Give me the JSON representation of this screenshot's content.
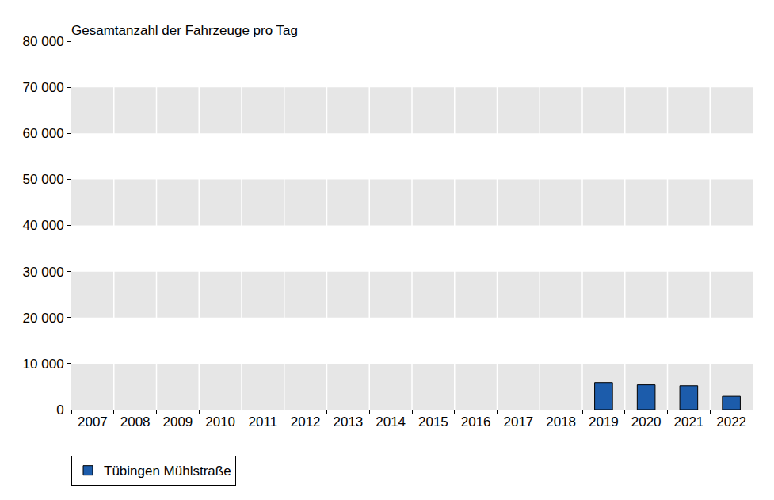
{
  "chart_data": {
    "type": "bar",
    "title": "Gesamtanzahl der Fahrzeuge pro Tag",
    "categories": [
      "2007",
      "2008",
      "2009",
      "2010",
      "2011",
      "2012",
      "2013",
      "2014",
      "2015",
      "2016",
      "2017",
      "2018",
      "2019",
      "2020",
      "2021",
      "2022"
    ],
    "series": [
      {
        "name": "Tübingen Mühlstraße",
        "color": "#1c5cab",
        "values": [
          null,
          null,
          null,
          null,
          null,
          null,
          null,
          null,
          null,
          null,
          null,
          null,
          5900,
          5400,
          5200,
          2900
        ]
      }
    ],
    "ylim": [
      0,
      80000
    ],
    "yticks": [
      0,
      {
        "value": 10000,
        "label": "10 000"
      },
      {
        "value": 20000,
        "label": "20 000"
      },
      {
        "value": 30000,
        "label": "30 000"
      },
      {
        "value": 40000,
        "label": "40 000"
      },
      {
        "value": 50000,
        "label": "50 000"
      },
      {
        "value": 60000,
        "label": "60 000"
      },
      {
        "value": 70000,
        "label": "70 000"
      },
      {
        "value": 80000,
        "label": "80 000"
      }
    ],
    "grid": true,
    "legend": "bottom"
  }
}
